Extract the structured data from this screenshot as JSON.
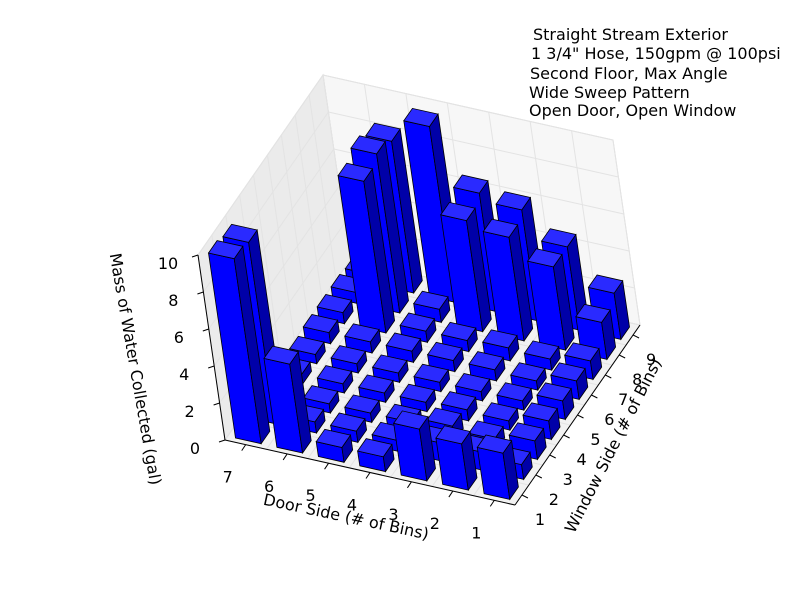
{
  "chart_data": {
    "type": "bar3d",
    "title": "",
    "annotation": [
      "Straight Stream Exterior",
      "1 3/4\" Hose, 150gpm @ 100psi",
      "Second Floor, Max Angle",
      "Wide Sweep Pattern",
      "Open Door, Open Window"
    ],
    "xlabel": "Door Side (# of Bins)",
    "ylabel": "Window Side (# of Bins)",
    "zlabel": "Mass of Water Collected (gal)",
    "x_ticks": [
      "1",
      "2",
      "3",
      "4",
      "5",
      "6",
      "7"
    ],
    "y_ticks": [
      "1",
      "2",
      "3",
      "4",
      "5",
      "6",
      "7",
      "8",
      "9"
    ],
    "z_ticks": [
      "0",
      "2",
      "4",
      "6",
      "8",
      "10"
    ],
    "zlim": [
      0,
      10
    ],
    "grid": true,
    "bar_color": "#0000ff",
    "values": [
      [
        2.5,
        0.8,
        1.0,
        1.0,
        1.0,
        1.0,
        1.0,
        2.0,
        2.5
      ],
      [
        2.5,
        1.0,
        0.6,
        0.5,
        0.5,
        0.5,
        0.6,
        4.5,
        4.5
      ],
      [
        2.8,
        1.0,
        0.8,
        0.6,
        0.5,
        0.6,
        0.7,
        5.6,
        6.0
      ],
      [
        0.8,
        0.6,
        0.5,
        0.5,
        0.5,
        0.6,
        0.6,
        6.0,
        6.4
      ],
      [
        0.8,
        0.6,
        0.5,
        0.5,
        0.5,
        0.6,
        0.6,
        0.7,
        9.5
      ],
      [
        4.8,
        0.6,
        0.5,
        0.5,
        0.5,
        0.6,
        8.2,
        8.6,
        8.2
      ],
      [
        10.0,
        9.8,
        0.5,
        0.5,
        0.5,
        0.6,
        0.6,
        0.6,
        0.5
      ]
    ]
  }
}
